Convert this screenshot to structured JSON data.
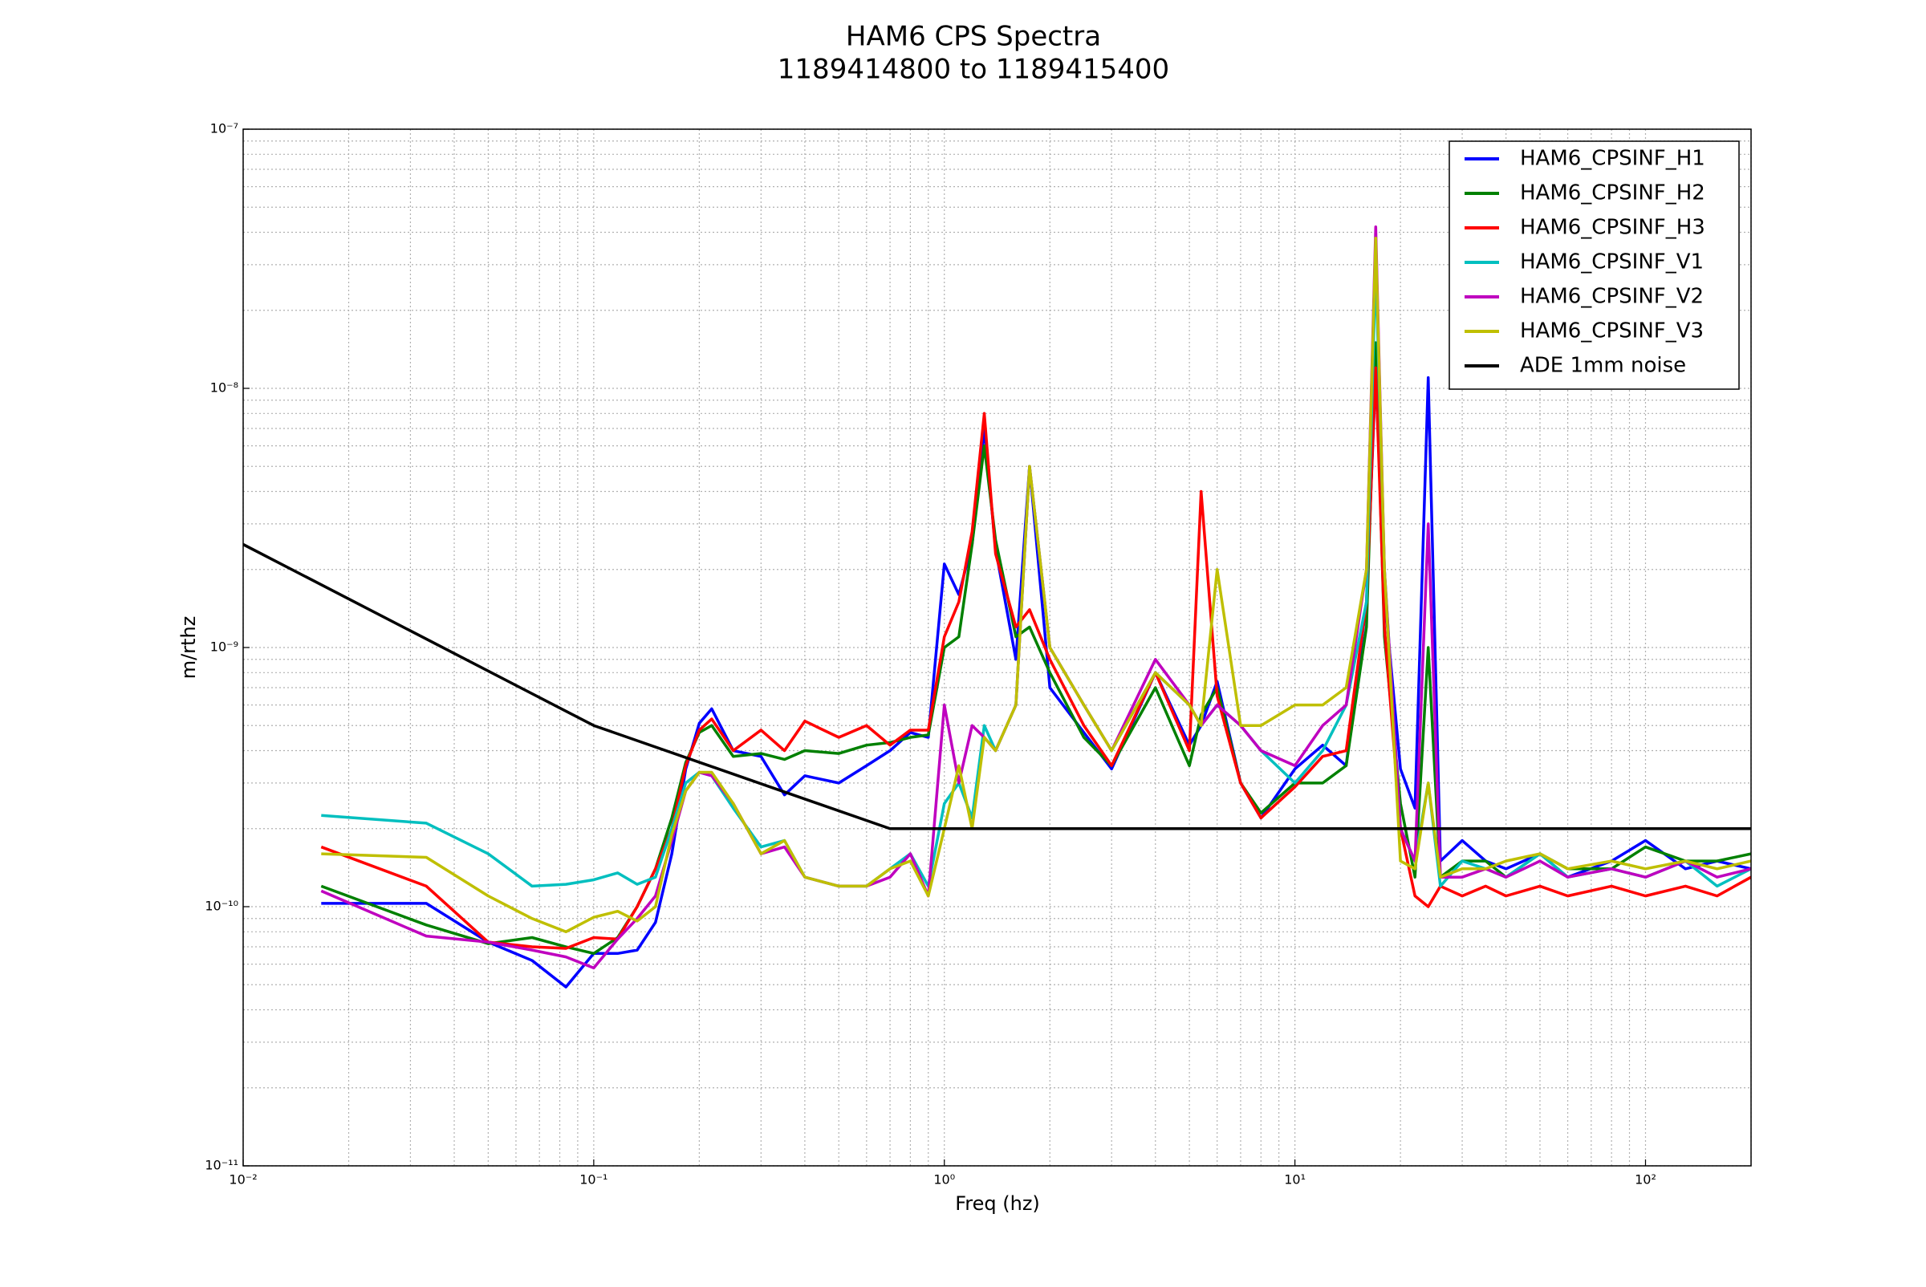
{
  "chart_data": {
    "type": "line",
    "title": "HAM6 CPS Spectra",
    "subtitle": "1189414800 to 1189415400",
    "x_label": "Freq (hz)",
    "y_label": "m/rthz",
    "xscale": "log",
    "yscale": "log",
    "grid": true,
    "legend": "upper right",
    "xlim": [
      0.01,
      200
    ],
    "ylim": [
      1e-11,
      1e-07
    ],
    "xticks": [
      {
        "value": 0.01,
        "label": "10⁻²"
      },
      {
        "value": 0.1,
        "label": "10⁻¹"
      },
      {
        "value": 1,
        "label": "10⁰"
      },
      {
        "value": 10,
        "label": "10¹"
      },
      {
        "value": 100,
        "label": "10²"
      }
    ],
    "yticks": [
      {
        "value": 1e-11,
        "label": "10⁻¹¹"
      },
      {
        "value": 1e-10,
        "label": "10⁻¹⁰"
      },
      {
        "value": 1e-09,
        "label": "10⁻⁹"
      },
      {
        "value": 1e-08,
        "label": "10⁻⁸"
      },
      {
        "value": 1e-07,
        "label": "10⁻⁷"
      }
    ],
    "xminorticks": [
      0.02,
      0.03,
      0.04,
      0.05,
      0.06,
      0.07,
      0.08,
      0.09,
      0.2,
      0.3,
      0.4,
      0.5,
      0.6,
      0.7,
      0.8,
      0.9,
      2,
      3,
      4,
      5,
      6,
      7,
      8,
      9,
      20,
      30,
      40,
      50,
      60,
      70,
      80,
      90,
      200
    ],
    "yminorticks": [
      2e-11,
      3e-11,
      4e-11,
      5e-11,
      6e-11,
      7e-11,
      8e-11,
      9e-11,
      2e-10,
      3e-10,
      4e-10,
      5e-10,
      6e-10,
      7e-10,
      8e-10,
      9e-10,
      2e-09,
      3e-09,
      4e-09,
      5e-09,
      6e-09,
      7e-09,
      8e-09,
      9e-09,
      2e-08,
      3e-08,
      4e-08,
      5e-08,
      6e-08,
      7e-08,
      8e-08,
      9e-08
    ],
    "x": [
      0.0167,
      0.0333,
      0.05,
      0.0667,
      0.0833,
      0.1,
      0.117,
      0.133,
      0.15,
      0.167,
      0.183,
      0.2,
      0.217,
      0.25,
      0.3,
      0.35,
      0.4,
      0.5,
      0.6,
      0.7,
      0.8,
      0.9,
      1.0,
      1.1,
      1.2,
      1.3,
      1.4,
      1.6,
      1.75,
      2,
      2.5,
      3,
      4,
      5,
      5.4,
      6,
      7,
      8,
      10,
      12,
      14,
      16,
      17,
      18,
      20,
      22,
      24,
      26,
      30,
      35,
      40,
      50,
      60,
      80,
      100,
      130,
      160,
      200
    ],
    "series": [
      {
        "name": "HAM6_CPSINF_H1",
        "color": "#0000ff",
        "values": [
          1.03e-10,
          1.03e-10,
          7.3e-11,
          6.2e-11,
          4.9e-11,
          6.6e-11,
          6.6e-11,
          6.8e-11,
          8.7e-11,
          1.6e-10,
          3.4e-10,
          5.1e-10,
          5.8e-10,
          4e-10,
          3.8e-10,
          2.7e-10,
          3.2e-10,
          3e-10,
          3.5e-10,
          4e-10,
          4.7e-10,
          4.5e-10,
          2.1e-09,
          1.6e-09,
          2.5e-09,
          7e-09,
          2.4e-09,
          9e-10,
          5e-09,
          7e-10,
          4.7e-10,
          3.4e-10,
          8e-10,
          4.2e-10,
          5e-10,
          7.4e-10,
          3e-10,
          2.2e-10,
          3.4e-10,
          4.2e-10,
          3.5e-10,
          1.5e-09,
          1.15e-08,
          1.6e-09,
          3.4e-10,
          2.4e-10,
          1.1e-08,
          1.5e-10,
          1.8e-10,
          1.5e-10,
          1.4e-10,
          1.6e-10,
          1.3e-10,
          1.5e-10,
          1.8e-10,
          1.4e-10,
          1.5e-10,
          1.4e-10
        ]
      },
      {
        "name": "HAM6_CPSINF_H2",
        "color": "#008000",
        "values": [
          1.2e-10,
          8.5e-11,
          7.2e-11,
          7.6e-11,
          7e-11,
          6.6e-11,
          7.6e-11,
          1e-10,
          1.4e-10,
          2.2e-10,
          3.6e-10,
          4.7e-10,
          5e-10,
          3.8e-10,
          3.9e-10,
          3.7e-10,
          4e-10,
          3.9e-10,
          4.2e-10,
          4.3e-10,
          4.5e-10,
          4.6e-10,
          1e-09,
          1.1e-09,
          2.5e-09,
          6e-09,
          2.6e-09,
          1.1e-09,
          1.2e-09,
          8e-10,
          4.5e-10,
          3.5e-10,
          7e-10,
          3.5e-10,
          5.5e-10,
          7e-10,
          3e-10,
          2.3e-10,
          3e-10,
          3e-10,
          3.5e-10,
          1.2e-09,
          1.5e-08,
          1.1e-09,
          2.5e-10,
          1.3e-10,
          1e-09,
          1.3e-10,
          1.5e-10,
          1.5e-10,
          1.3e-10,
          1.6e-10,
          1.4e-10,
          1.4e-10,
          1.7e-10,
          1.5e-10,
          1.5e-10,
          1.6e-10
        ]
      },
      {
        "name": "HAM6_CPSINF_H3",
        "color": "#ff0000",
        "values": [
          1.7e-10,
          1.2e-10,
          7.3e-11,
          7e-11,
          6.9e-11,
          7.6e-11,
          7.5e-11,
          1e-10,
          1.4e-10,
          2e-10,
          3.5e-10,
          4.8e-10,
          5.3e-10,
          4e-10,
          4.8e-10,
          4e-10,
          5.2e-10,
          4.5e-10,
          5e-10,
          4.2e-10,
          4.8e-10,
          4.8e-10,
          1.1e-09,
          1.5e-09,
          2.8e-09,
          8e-09,
          2.3e-09,
          1.2e-09,
          1.4e-09,
          9e-10,
          5e-10,
          3.5e-10,
          8e-10,
          4e-10,
          4e-09,
          6.5e-10,
          3e-10,
          2.2e-10,
          2.9e-10,
          3.8e-10,
          4e-10,
          1.5e-09,
          1.2e-08,
          1.2e-09,
          2e-10,
          1.1e-10,
          1e-10,
          1.2e-10,
          1.1e-10,
          1.2e-10,
          1.1e-10,
          1.2e-10,
          1.1e-10,
          1.2e-10,
          1.1e-10,
          1.2e-10,
          1.1e-10,
          1.3e-10
        ]
      },
      {
        "name": "HAM6_CPSINF_V1",
        "color": "#00bfbf",
        "values": [
          2.25e-10,
          2.1e-10,
          1.6e-10,
          1.2e-10,
          1.22e-10,
          1.27e-10,
          1.35e-10,
          1.22e-10,
          1.3e-10,
          2e-10,
          3e-10,
          3.3e-10,
          3.2e-10,
          2.4e-10,
          1.7e-10,
          1.8e-10,
          1.3e-10,
          1.2e-10,
          1.2e-10,
          1.4e-10,
          1.6e-10,
          1.2e-10,
          2.5e-10,
          3e-10,
          2.2e-10,
          5e-10,
          4e-10,
          6e-10,
          5e-09,
          1e-09,
          6e-10,
          4e-10,
          8e-10,
          6e-10,
          5e-10,
          6e-10,
          5e-10,
          4e-10,
          3e-10,
          4e-10,
          6e-10,
          1.5e-09,
          3e-08,
          2e-09,
          2e-10,
          1.5e-10,
          3e-10,
          1.2e-10,
          1.5e-10,
          1.4e-10,
          1.3e-10,
          1.6e-10,
          1.3e-10,
          1.4e-10,
          1.3e-10,
          1.5e-10,
          1.2e-10,
          1.4e-10
        ]
      },
      {
        "name": "HAM6_CPSINF_V2",
        "color": "#bf00bf",
        "values": [
          1.15e-10,
          7.7e-11,
          7.3e-11,
          6.8e-11,
          6.4e-11,
          5.8e-11,
          7.5e-11,
          9e-11,
          1.1e-10,
          1.8e-10,
          2.8e-10,
          3.3e-10,
          3.2e-10,
          2.5e-10,
          1.6e-10,
          1.7e-10,
          1.3e-10,
          1.2e-10,
          1.2e-10,
          1.3e-10,
          1.6e-10,
          1.1e-10,
          6e-10,
          3e-10,
          5e-10,
          4.5e-10,
          4e-10,
          6e-10,
          5e-09,
          1e-09,
          6e-10,
          4e-10,
          9e-10,
          6e-10,
          5e-10,
          6e-10,
          5e-10,
          4e-10,
          3.5e-10,
          5e-10,
          6e-10,
          2e-09,
          4.2e-08,
          2e-09,
          2e-10,
          1.5e-10,
          3e-09,
          1.3e-10,
          1.3e-10,
          1.4e-10,
          1.3e-10,
          1.5e-10,
          1.3e-10,
          1.4e-10,
          1.3e-10,
          1.5e-10,
          1.3e-10,
          1.4e-10
        ]
      },
      {
        "name": "HAM6_CPSINF_V3",
        "color": "#bfbf00",
        "values": [
          1.6e-10,
          1.55e-10,
          1.1e-10,
          9e-11,
          8e-11,
          9.1e-11,
          9.6e-11,
          8.8e-11,
          1e-10,
          1.9e-10,
          2.8e-10,
          3.3e-10,
          3.3e-10,
          2.5e-10,
          1.6e-10,
          1.8e-10,
          1.3e-10,
          1.2e-10,
          1.2e-10,
          1.4e-10,
          1.5e-10,
          1.1e-10,
          2e-10,
          3.5e-10,
          2e-10,
          4.5e-10,
          4e-10,
          6e-10,
          5e-09,
          1e-09,
          6e-10,
          4e-10,
          8e-10,
          6e-10,
          5e-10,
          2e-09,
          5e-10,
          5e-10,
          6e-10,
          6e-10,
          7e-10,
          2e-09,
          3.8e-08,
          2e-09,
          1.5e-10,
          1.4e-10,
          3e-10,
          1.3e-10,
          1.4e-10,
          1.4e-10,
          1.5e-10,
          1.6e-10,
          1.4e-10,
          1.5e-10,
          1.4e-10,
          1.5e-10,
          1.4e-10,
          1.5e-10
        ]
      },
      {
        "name": "ADE 1mm noise",
        "color": "#000000",
        "x": [
          0.01,
          0.1,
          0.7,
          200
        ],
        "values": [
          2.5e-09,
          5e-10,
          2e-10,
          2e-10
        ]
      }
    ]
  }
}
